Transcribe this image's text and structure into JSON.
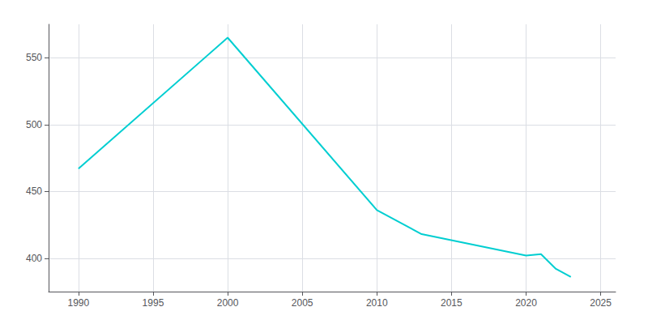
{
  "chart_data": {
    "type": "line",
    "x": [
      1990,
      2000,
      2010,
      2013,
      2020,
      2021,
      2022,
      2023
    ],
    "values": [
      467,
      565,
      436,
      418,
      402,
      403,
      392,
      386
    ],
    "color": "#00CED1",
    "xlim": [
      1988,
      2026
    ],
    "xticks": [
      1990,
      1995,
      2000,
      2005,
      2010,
      2015,
      2020,
      2025
    ],
    "ylim": [
      375,
      575
    ],
    "yticks": [
      400,
      450,
      500,
      550
    ],
    "grid": true
  }
}
